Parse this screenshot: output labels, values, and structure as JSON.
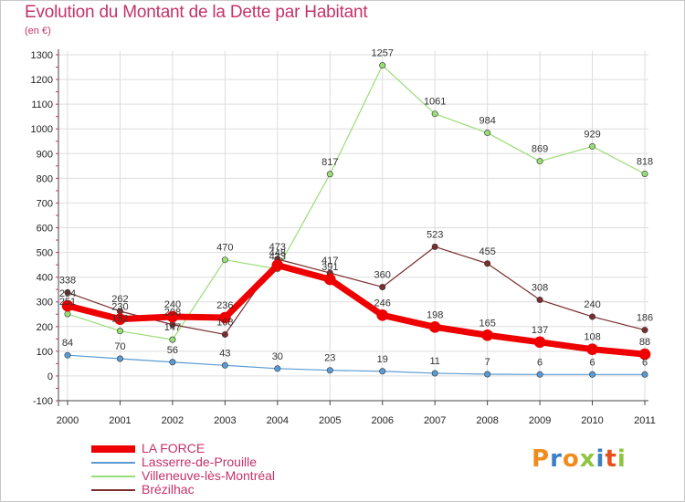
{
  "title": "Evolution du Montant de la Dette par Habitant",
  "subtitle": "(en €)",
  "logo": {
    "text": "Proxiti",
    "colors": [
      "#f18b1c",
      "#3b7fc4",
      "#f18b1c",
      "#8dc63f",
      "#3b7fc4",
      "#e94e1b",
      "#8dc63f"
    ]
  },
  "chart_data": {
    "type": "line",
    "x": [
      "2000",
      "2001",
      "2002",
      "2003",
      "2004",
      "2005",
      "2006",
      "2007",
      "2008",
      "2009",
      "2010",
      "2011"
    ],
    "ylim": [
      -100,
      1300
    ],
    "yticks": [
      "-100",
      "0",
      "100",
      "200",
      "300",
      "400",
      "500",
      "600",
      "700",
      "800",
      "900",
      "1000",
      "1100",
      "1200",
      "1300"
    ],
    "grid": true,
    "legend_position": "bottom-left",
    "series": [
      {
        "name": "Lasserre-de-Prouille",
        "color": "#5a9bd4",
        "width": 1.2,
        "values": [
          84,
          70,
          56,
          43,
          30,
          23,
          19,
          11,
          7,
          6,
          6,
          6
        ],
        "labels": [
          "84",
          "70",
          "56",
          "43",
          "30",
          "23",
          "19",
          "11",
          "7",
          "6",
          "6",
          "6"
        ]
      },
      {
        "name": "Villeneuve-lès-Montréal",
        "color": "#99dd77",
        "width": 1.2,
        "values": [
          251,
          182,
          147,
          470,
          433,
          817,
          1257,
          1061,
          984,
          869,
          929,
          818
        ],
        "labels": [
          "251",
          "182",
          "147",
          "470",
          "433",
          "817",
          "1257",
          "1061",
          "984",
          "869",
          "929",
          "818"
        ]
      },
      {
        "name": "Brézilhac",
        "color": "#7a2e2e",
        "width": 1.2,
        "values": [
          338,
          262,
          208,
          168,
          473,
          417,
          360,
          523,
          455,
          308,
          240,
          186
        ],
        "labels": [
          "338",
          "262",
          "208",
          "168",
          "473",
          "417",
          "360",
          "523",
          "455",
          "308",
          "240",
          "186"
        ]
      },
      {
        "name": "LA FORCE",
        "color": "#ee0000",
        "width": 7,
        "values": [
          284,
          230,
          240,
          236,
          448,
          391,
          246,
          198,
          165,
          137,
          108,
          88
        ],
        "labels": [
          "284",
          "230",
          "240",
          "236",
          "448",
          "391",
          "246",
          "198",
          "165",
          "137",
          "108",
          "88"
        ]
      }
    ],
    "legend_order": [
      "LA FORCE",
      "Lasserre-de-Prouille",
      "Villeneuve-lès-Montréal",
      "Brézilhac"
    ]
  }
}
